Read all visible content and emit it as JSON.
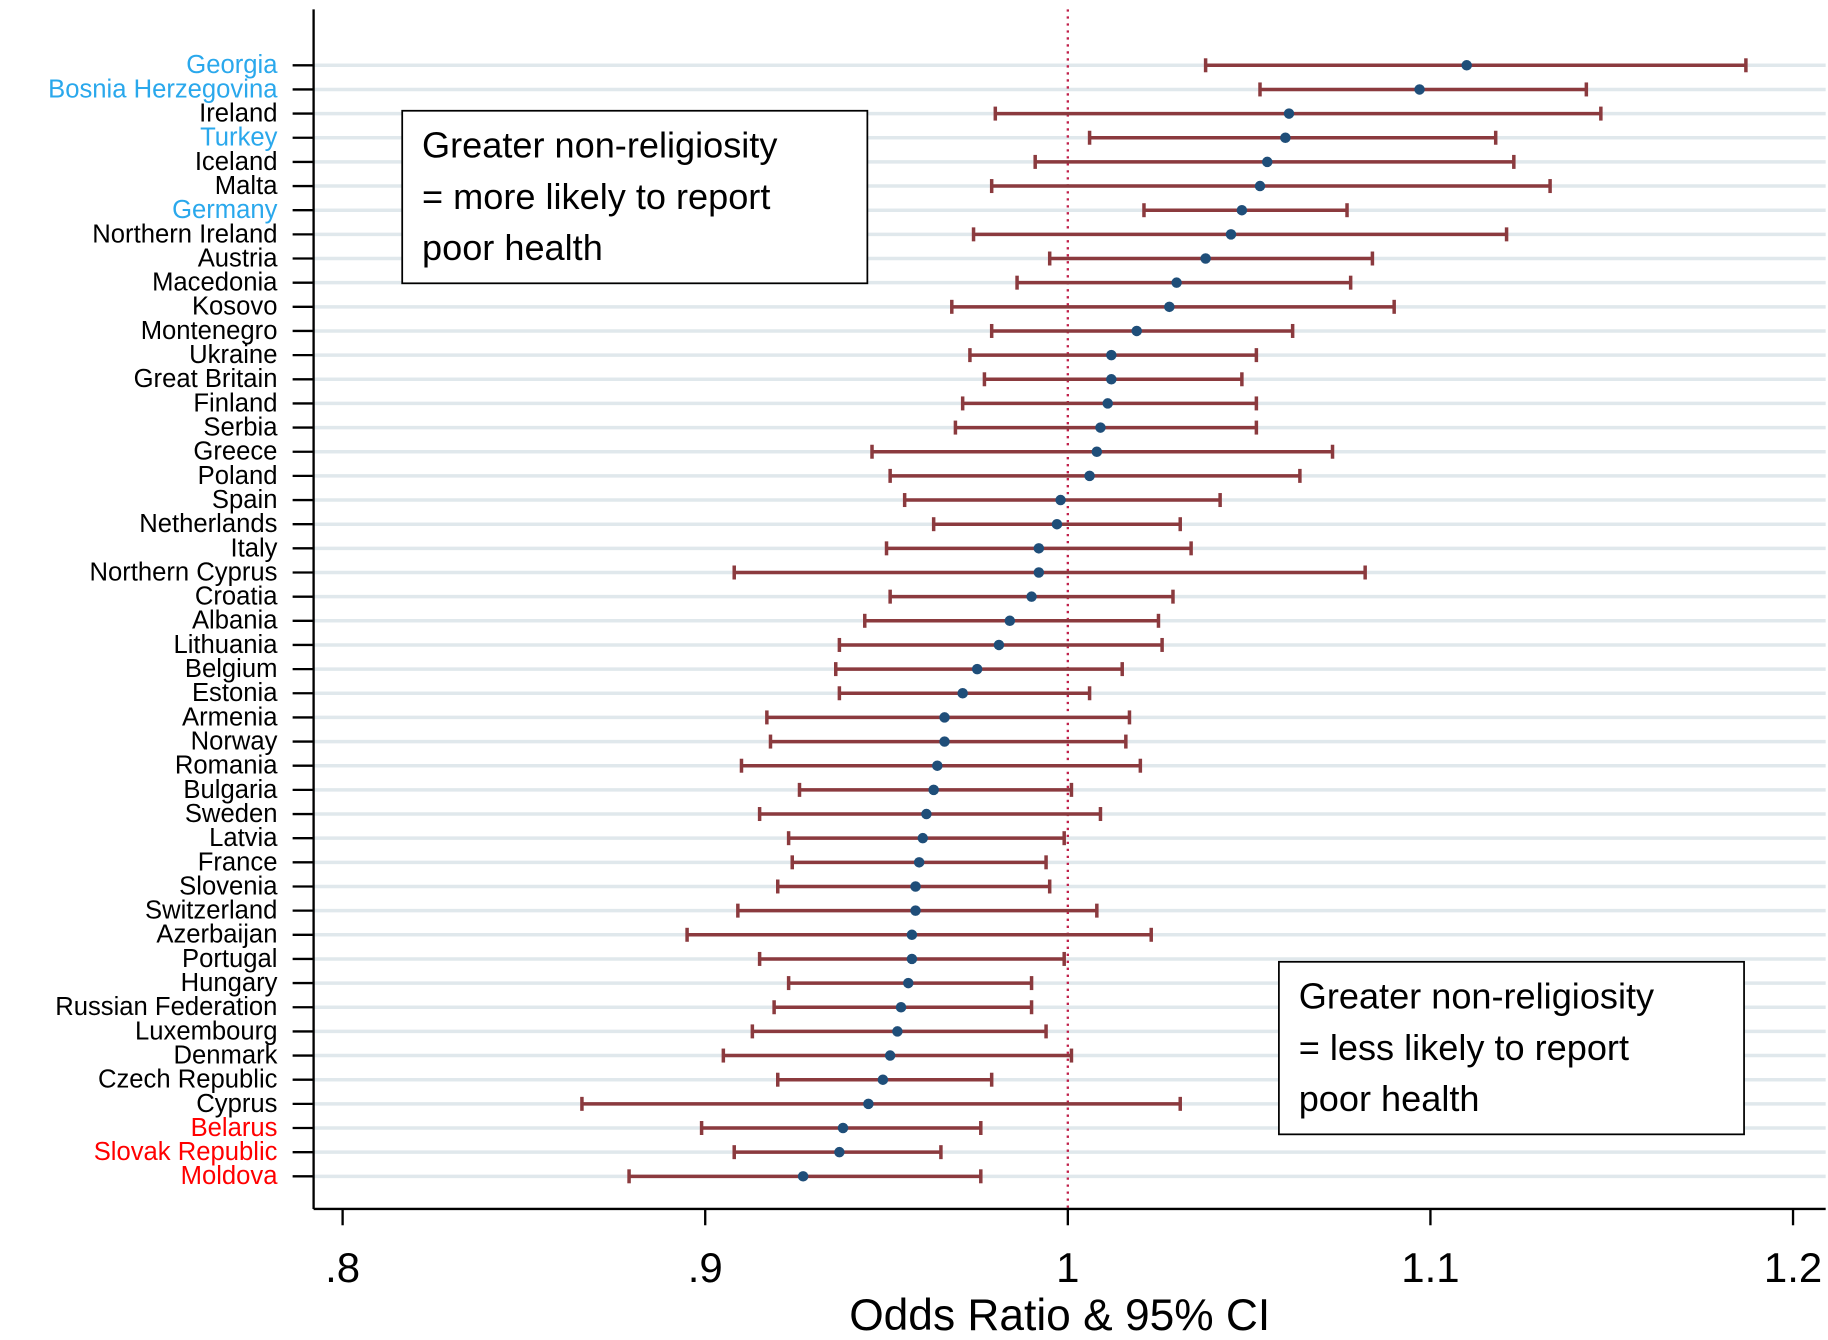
{
  "chart_data": {
    "type": "forest",
    "x_label": "Odds Ratio & 95% CI",
    "categories": [
      "Georgia",
      "Bosnia Herzegovina",
      "Ireland",
      "Turkey",
      "Iceland",
      "Malta",
      "Germany",
      "Northern Ireland",
      "Austria",
      "Macedonia",
      "Kosovo",
      "Montenegro",
      "Ukraine",
      "Great Britain",
      "Finland",
      "Serbia",
      "Greece",
      "Poland",
      "Spain",
      "Netherlands",
      "Italy",
      "Northern Cyprus",
      "Croatia",
      "Albania",
      "Lithuania",
      "Belgium",
      "Estonia",
      "Armenia",
      "Norway",
      "Romania",
      "Bulgaria",
      "Sweden",
      "Latvia",
      "France",
      "Slovenia",
      "Switzerland",
      "Azerbaijan",
      "Portugal",
      "Hungary",
      "Russian Federation",
      "Luxembourg",
      "Denmark",
      "Czech Republic",
      "Cyprus",
      "Belarus",
      "Slovak Republic",
      "Moldova"
    ],
    "label_colors": [
      "#2aa8ec",
      "#2aa8ec",
      "#000000",
      "#2aa8ec",
      "#000000",
      "#000000",
      "#2aa8ec",
      "#000000",
      "#000000",
      "#000000",
      "#000000",
      "#000000",
      "#000000",
      "#000000",
      "#000000",
      "#000000",
      "#000000",
      "#000000",
      "#000000",
      "#000000",
      "#000000",
      "#000000",
      "#000000",
      "#000000",
      "#000000",
      "#000000",
      "#000000",
      "#000000",
      "#000000",
      "#000000",
      "#000000",
      "#000000",
      "#000000",
      "#000000",
      "#000000",
      "#000000",
      "#000000",
      "#000000",
      "#000000",
      "#000000",
      "#000000",
      "#000000",
      "#000000",
      "#000000",
      "#ff0000",
      "#ff0000",
      "#ff0000"
    ],
    "values": [
      1.11,
      1.097,
      1.061,
      1.06,
      1.055,
      1.053,
      1.048,
      1.045,
      1.038,
      1.03,
      1.028,
      1.019,
      1.012,
      1.012,
      1.011,
      1.009,
      1.008,
      1.006,
      0.998,
      0.997,
      0.992,
      0.992,
      0.99,
      0.984,
      0.981,
      0.975,
      0.971,
      0.966,
      0.966,
      0.964,
      0.963,
      0.961,
      0.96,
      0.959,
      0.958,
      0.958,
      0.957,
      0.957,
      0.956,
      0.954,
      0.953,
      0.951,
      0.949,
      0.945,
      0.938,
      0.937,
      0.927
    ],
    "lower": [
      1.038,
      1.053,
      0.98,
      1.006,
      0.991,
      0.979,
      1.021,
      0.974,
      0.995,
      0.986,
      0.968,
      0.979,
      0.973,
      0.977,
      0.971,
      0.969,
      0.946,
      0.951,
      0.955,
      0.963,
      0.95,
      0.908,
      0.951,
      0.944,
      0.937,
      0.936,
      0.937,
      0.917,
      0.918,
      0.91,
      0.926,
      0.915,
      0.923,
      0.924,
      0.92,
      0.909,
      0.895,
      0.915,
      0.923,
      0.919,
      0.913,
      0.905,
      0.92,
      0.866,
      0.899,
      0.908,
      0.879
    ],
    "upper": [
      1.187,
      1.143,
      1.147,
      1.118,
      1.123,
      1.133,
      1.077,
      1.121,
      1.084,
      1.078,
      1.09,
      1.062,
      1.052,
      1.048,
      1.052,
      1.052,
      1.073,
      1.064,
      1.042,
      1.031,
      1.034,
      1.082,
      1.029,
      1.025,
      1.026,
      1.015,
      1.006,
      1.017,
      1.016,
      1.02,
      1.001,
      1.009,
      0.999,
      0.994,
      0.995,
      1.008,
      1.023,
      0.999,
      0.99,
      0.99,
      0.994,
      1.001,
      0.979,
      1.031,
      0.976,
      0.965,
      0.976
    ],
    "point_color": "#1f4e79",
    "ci_color": "#8b3a3e",
    "reference_line": 1,
    "reference_color": "#c0204a",
    "grid": true,
    "xlim": [
      0.792,
      1.209
    ],
    "xticks": [
      {
        "value": 0.8,
        "label": ".8"
      },
      {
        "value": 0.9,
        "label": ".9"
      },
      1,
      1.1,
      1.2
    ],
    "annotations": [
      {
        "lines": [
          "Greater non-religiosity",
          "= more likely to report",
          "poor health"
        ],
        "corner": "top-left"
      },
      {
        "lines": [
          "Greater non-religiosity",
          "= less likely to report",
          "poor health"
        ],
        "corner": "bottom-right"
      }
    ]
  }
}
